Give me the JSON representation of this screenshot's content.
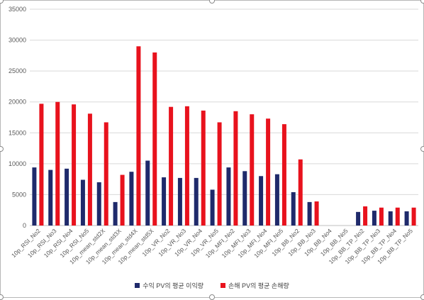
{
  "chart_data": {
    "type": "bar",
    "title": "",
    "xlabel": "",
    "ylabel": "",
    "ylim": [
      0,
      35000
    ],
    "yticks": [
      0,
      5000,
      10000,
      15000,
      20000,
      25000,
      30000,
      35000
    ],
    "grid": true,
    "legend_position": "bottom",
    "categories": [
      "10p_RSI_No2",
      "10p_RSI_No3",
      "10p_RSI_No4",
      "10p_RSI_No5",
      "10p_mean_std2X",
      "10p_mean_std3X",
      "10p_mean_std4X",
      "10p_mean_std5X",
      "10p_VR_No2",
      "10p_VR_No3",
      "10p_VR_No4",
      "10p_VR_No5",
      "10p_MFI_No2",
      "10p_MFI_No3",
      "10p_MFI_No4",
      "10p_MFI_No5",
      "10p_BB_No2",
      "10p_BB_No3",
      "10p_BB_No4",
      "10p_BB_No5",
      "10p_BB_TP_No2",
      "10p_BB_TP_No3",
      "10p_BB_TP_No4",
      "10p_BB_TP_No5"
    ],
    "series": [
      {
        "name": "수익 PV의 평균 이익량",
        "color": "#1f2a6b",
        "values": [
          9400,
          9000,
          9200,
          7400,
          7000,
          3800,
          8700,
          10500,
          7800,
          7700,
          7700,
          5800,
          9400,
          8800,
          8000,
          8300,
          5400,
          3800,
          0,
          0,
          2200,
          2400,
          2300,
          2300
        ]
      },
      {
        "name": "손해 PV의 평균 손해량",
        "color": "#e8121d",
        "values": [
          19700,
          20000,
          19600,
          18100,
          16700,
          8200,
          29000,
          28000,
          19200,
          19300,
          18600,
          16700,
          18500,
          18000,
          17300,
          16400,
          10700,
          3900,
          0,
          0,
          3100,
          2900,
          2900,
          2900
        ]
      }
    ]
  }
}
